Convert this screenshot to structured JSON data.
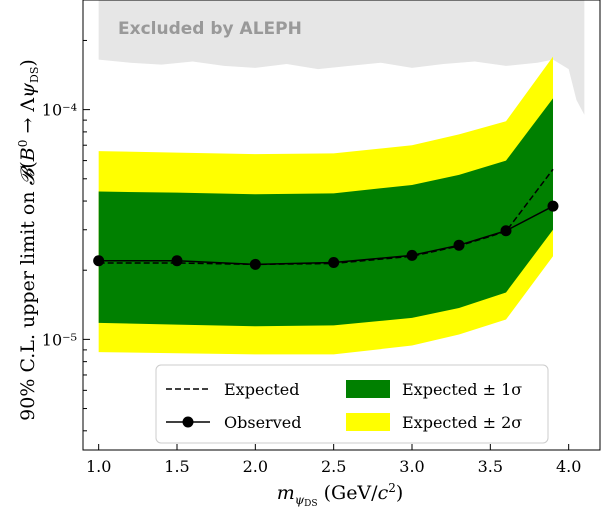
{
  "chart_data": {
    "type": "line",
    "xlabel": "m_ψDS (GeV/c²)",
    "ylabel": "90% C.L. upper limit on 𝓑(B⁰ → Λψ_DS)",
    "ylog": true,
    "xlim": [
      0.9,
      4.2
    ],
    "ylim": [
      3.3e-06,
      0.0003
    ],
    "x_ticks": [
      1.0,
      1.5,
      2.0,
      2.5,
      3.0,
      3.5,
      4.0
    ],
    "x_tick_labels": [
      "1.0",
      "1.5",
      "2.0",
      "2.5",
      "3.0",
      "3.5",
      "4.0"
    ],
    "y_major_ticks": [
      1e-05,
      0.0001
    ],
    "y_major_tick_labels": [
      "10⁻⁵",
      "10⁻⁴"
    ],
    "x": [
      1.0,
      1.5,
      2.0,
      2.5,
      3.0,
      3.3,
      3.6,
      3.9
    ],
    "expected": [
      2.15e-05,
      2.15e-05,
      2.12e-05,
      2.14e-05,
      2.3e-05,
      2.55e-05,
      2.95e-05,
      5.5e-05
    ],
    "observed": [
      2.2e-05,
      2.2e-05,
      2.12e-05,
      2.16e-05,
      2.32e-05,
      2.57e-05,
      2.97e-05,
      3.8e-05
    ],
    "band_1sigma_low": [
      1.18e-05,
      1.16e-05,
      1.14e-05,
      1.15e-05,
      1.24e-05,
      1.37e-05,
      1.6e-05,
      3e-05
    ],
    "band_1sigma_high": [
      4.4e-05,
      4.35e-05,
      4.28e-05,
      4.32e-05,
      4.7e-05,
      5.2e-05,
      6e-05,
      0.000112
    ],
    "band_2sigma_low": [
      8.8e-06,
      8.7e-06,
      8.6e-06,
      8.6e-06,
      9.4e-06,
      1.05e-05,
      1.22e-05,
      2.3e-05
    ],
    "band_2sigma_high": [
      6.6e-05,
      6.5e-05,
      6.4e-05,
      6.45e-05,
      7e-05,
      7.8e-05,
      8.9e-05,
      0.00017
    ],
    "excluded_x": [
      1.0,
      1.2,
      1.4,
      1.6,
      1.8,
      2.0,
      2.2,
      2.4,
      2.6,
      2.8,
      3.0,
      3.2,
      3.4,
      3.6,
      3.8,
      3.9,
      4.0,
      4.05,
      4.1
    ],
    "excluded_low": [
      0.000165,
      0.00016,
      0.000157,
      0.000162,
      0.000155,
      0.000152,
      0.000158,
      0.00015,
      0.000155,
      0.00016,
      0.000152,
      0.000158,
      0.000162,
      0.000155,
      0.00016,
      0.000165,
      0.00015,
      0.00011,
      9.5e-05
    ],
    "excluded_label": "Excluded by ALEPH",
    "legend": {
      "placement": "lower-center",
      "expected": "Expected",
      "observed": "Observed",
      "band1": "Expected ± 1σ",
      "band2": "Expected ± 2σ"
    },
    "colors": {
      "band1": "#008000",
      "band2": "#ffff00",
      "excluded": "#e6e6e6",
      "annotation": "#999999",
      "line": "#000000"
    }
  }
}
